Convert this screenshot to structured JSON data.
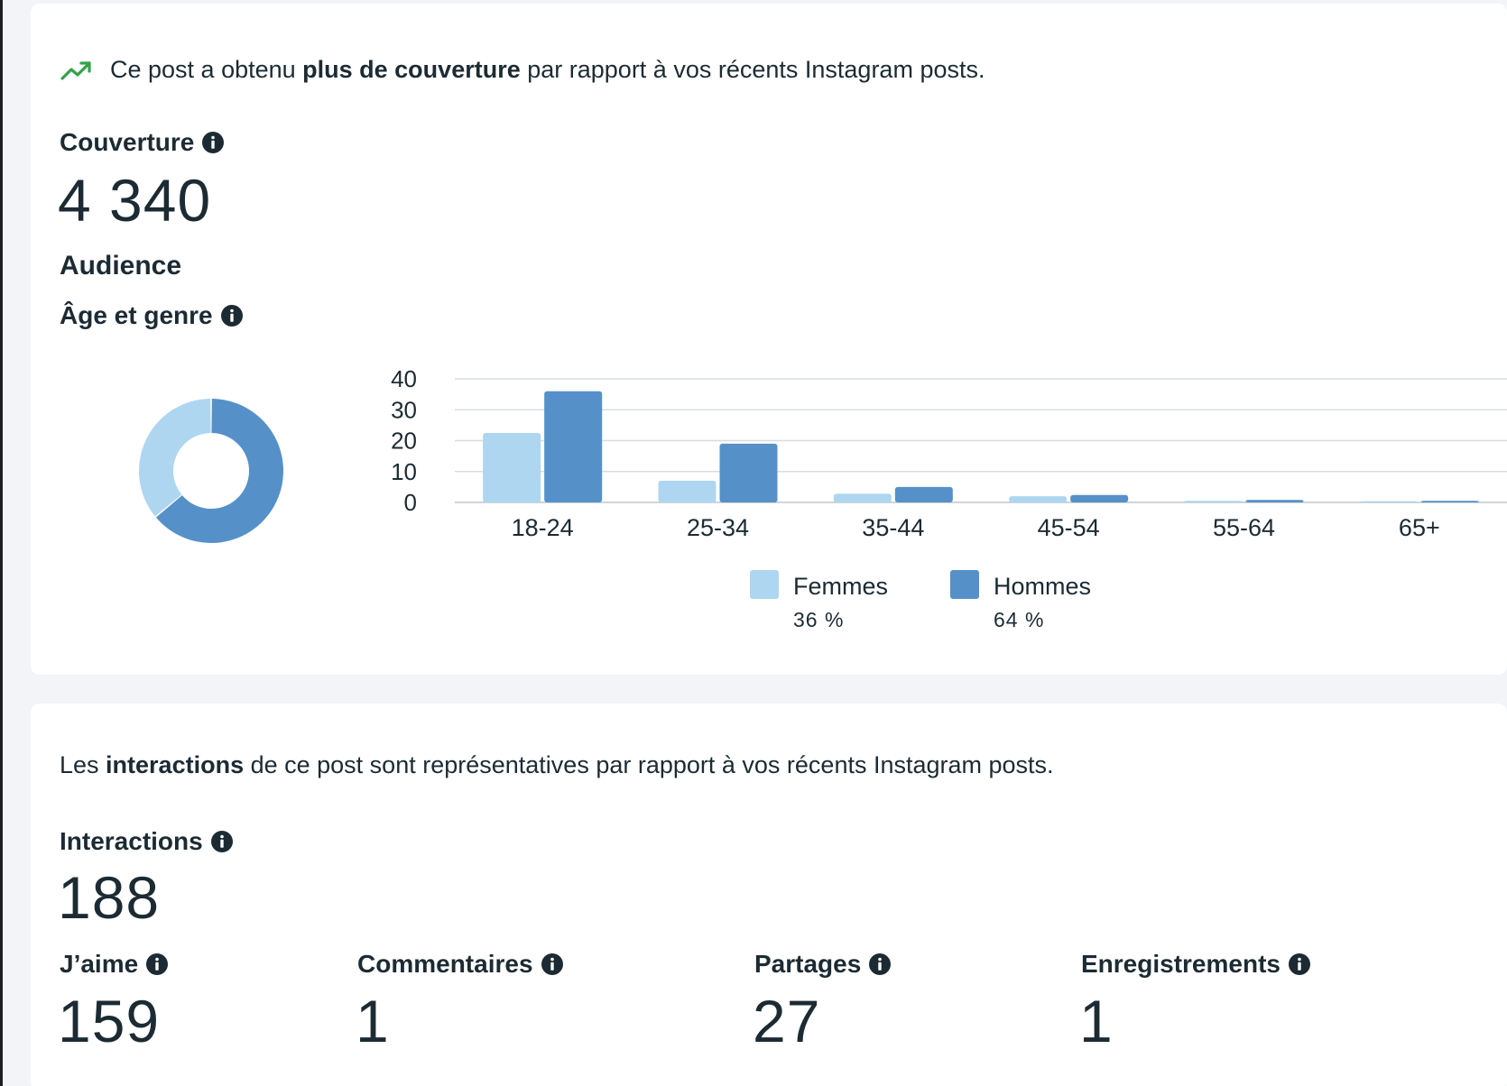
{
  "reach_card": {
    "insight": {
      "prefix": "Ce post a obtenu ",
      "bold": "plus de couverture",
      "suffix": " par rapport à vos récents Instagram posts."
    },
    "reach_label": "Couverture",
    "reach_value": "4 340",
    "audience_title": "Audience",
    "age_gender_label": "Âge et genre",
    "legend": [
      {
        "name": "Femmes",
        "percent": "36 %",
        "color": "#aed6f1"
      },
      {
        "name": "Hommes",
        "percent": "64 %",
        "color": "#5591c8"
      }
    ]
  },
  "chart_data": {
    "type": "bar",
    "categories": [
      "18-24",
      "25-34",
      "35-44",
      "45-54",
      "55-64",
      "65+"
    ],
    "series": [
      {
        "name": "Femmes",
        "values": [
          22.5,
          7,
          2.8,
          2,
          0.5,
          0.4
        ]
      },
      {
        "name": "Hommes",
        "values": [
          36,
          19,
          5,
          2.4,
          0.8,
          0.5
        ]
      }
    ],
    "yticks": [
      "40",
      "30",
      "20",
      "10",
      "0"
    ],
    "ylim": [
      0,
      40
    ],
    "donut": {
      "segments": [
        {
          "name": "Femmes",
          "percent": 36
        },
        {
          "name": "Hommes",
          "percent": 64
        }
      ]
    }
  },
  "interactions_card": {
    "insight": {
      "prefix": "Les ",
      "bold": "interactions",
      "suffix": " de ce post sont représentatives par rapport à vos récents Instagram posts."
    },
    "interactions_label": "Interactions",
    "interactions_value": "188",
    "metrics": [
      {
        "label": "J’aime",
        "value": "159"
      },
      {
        "label": "Commentaires",
        "value": "1"
      },
      {
        "label": "Partages",
        "value": "27"
      },
      {
        "label": "Enregistrements",
        "value": "1"
      }
    ]
  },
  "colors": {
    "trend_icon": "#31a24c",
    "femmes": "#aed6f1",
    "hommes": "#5591c8",
    "text": "#1c2b33"
  },
  "icons": [
    "trend-up-icon",
    "info-icon"
  ]
}
